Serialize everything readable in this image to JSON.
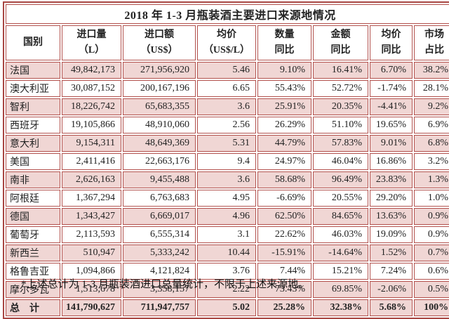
{
  "table": {
    "title": "2018 年 1-3 月瓶装酒主要进口来源地情况",
    "headers": [
      "国别",
      "进口量\n（L）",
      "进口额\n（US$）",
      "均价\n（US$/L）",
      "数量\n同比",
      "金额\n同比",
      "均价\n同比",
      "市场\n占比"
    ],
    "rows": [
      {
        "country": "法国",
        "values": [
          "49,842,173",
          "271,956,920",
          "5.46",
          "9.10%",
          "16.41%",
          "6.70%",
          "38.2%"
        ]
      },
      {
        "country": "澳大利亚",
        "values": [
          "30,087,152",
          "200,167,196",
          "6.65",
          "55.43%",
          "52.72%",
          "-1.74%",
          "28.1%"
        ]
      },
      {
        "country": "智利",
        "values": [
          "18,226,742",
          "65,683,355",
          "3.6",
          "25.91%",
          "20.35%",
          "-4.41%",
          "9.2%"
        ]
      },
      {
        "country": "西班牙",
        "values": [
          "19,105,866",
          "48,910,060",
          "2.56",
          "26.29%",
          "51.10%",
          "19.65%",
          "6.9%"
        ]
      },
      {
        "country": "意大利",
        "values": [
          "9,154,311",
          "48,649,369",
          "5.31",
          "44.79%",
          "57.83%",
          "9.01%",
          "6.8%"
        ]
      },
      {
        "country": "美国",
        "values": [
          "2,411,416",
          "22,663,176",
          "9.4",
          "24.97%",
          "46.04%",
          "16.86%",
          "3.2%"
        ]
      },
      {
        "country": "南非",
        "values": [
          "2,626,163",
          "9,455,488",
          "3.6",
          "58.68%",
          "96.49%",
          "23.83%",
          "1.3%"
        ]
      },
      {
        "country": "阿根廷",
        "values": [
          "1,367,294",
          "6,763,683",
          "4.95",
          "-6.69%",
          "20.55%",
          "29.20%",
          "1.0%"
        ]
      },
      {
        "country": "德国",
        "values": [
          "1,343,427",
          "6,669,017",
          "4.96",
          "62.50%",
          "84.65%",
          "13.63%",
          "0.9%"
        ]
      },
      {
        "country": "葡萄牙",
        "values": [
          "2,113,593",
          "6,555,314",
          "3.1",
          "22.62%",
          "46.03%",
          "19.09%",
          "0.9%"
        ]
      },
      {
        "country": "新西兰",
        "values": [
          "510,947",
          "5,333,242",
          "10.44",
          "-15.91%",
          "-14.64%",
          "1.52%",
          "0.7%"
        ]
      },
      {
        "country": "格鲁吉亚",
        "values": [
          "1,094,866",
          "4,121,824",
          "3.76",
          "7.44%",
          "15.21%",
          "7.24%",
          "0.6%"
        ]
      },
      {
        "country": "摩尔多瓦",
        "values": [
          "1,513,678",
          "3,358,157",
          "2.22",
          "73.43%",
          "69.85%",
          "-2.06%",
          "0.5%"
        ]
      }
    ],
    "total_row": {
      "country": "总　计",
      "values": [
        "141,790,627",
        "711,947,757",
        "5.02",
        "25.28%",
        "32.38%",
        "5.68%",
        "100%"
      ]
    },
    "colors": {
      "border": "#b2514d",
      "outer_border": "#a84743",
      "row_pink": "#f0d6d4",
      "row_white": "#ffffff",
      "text": "#222222"
    }
  },
  "footnote": "*上述总计为 1-3 月瓶装酒进口总量统计，不限于上述来源地。"
}
